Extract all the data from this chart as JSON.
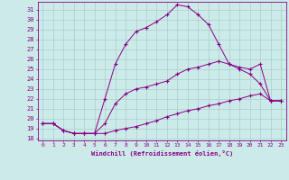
{
  "xlabel": "Windchill (Refroidissement éolien,°C)",
  "xlim": [
    -0.5,
    23.5
  ],
  "ylim": [
    17.8,
    31.8
  ],
  "yticks": [
    18,
    19,
    20,
    21,
    22,
    23,
    24,
    25,
    26,
    27,
    28,
    29,
    30,
    31
  ],
  "xticks": [
    0,
    1,
    2,
    3,
    4,
    5,
    6,
    7,
    8,
    9,
    10,
    11,
    12,
    13,
    14,
    15,
    16,
    17,
    18,
    19,
    20,
    21,
    22,
    23
  ],
  "bg_color": "#cceae8",
  "grid_color": "#aacfcc",
  "line_color": "#880088",
  "line1_x": [
    0,
    1,
    2,
    3,
    4,
    5,
    6,
    7,
    8,
    9,
    10,
    11,
    12,
    13,
    14,
    15,
    16,
    17,
    18,
    19,
    20,
    21,
    22,
    23
  ],
  "line1_y": [
    19.5,
    19.5,
    18.8,
    18.5,
    18.5,
    18.5,
    18.5,
    18.8,
    19.0,
    19.2,
    19.5,
    19.8,
    20.2,
    20.5,
    20.8,
    21.0,
    21.3,
    21.5,
    21.8,
    22.0,
    22.3,
    22.5,
    21.8,
    21.8
  ],
  "line2_x": [
    0,
    1,
    2,
    3,
    4,
    5,
    6,
    7,
    8,
    9,
    10,
    11,
    12,
    13,
    14,
    15,
    16,
    17,
    18,
    19,
    20,
    21,
    22,
    23
  ],
  "line2_y": [
    19.5,
    19.5,
    18.8,
    18.5,
    18.5,
    18.5,
    19.5,
    21.5,
    22.5,
    23.0,
    23.2,
    23.5,
    23.8,
    24.5,
    25.0,
    25.2,
    25.5,
    25.8,
    25.5,
    25.2,
    25.0,
    25.5,
    21.8,
    21.8
  ],
  "line3_x": [
    0,
    1,
    2,
    3,
    4,
    5,
    6,
    7,
    8,
    9,
    10,
    11,
    12,
    13,
    14,
    15,
    16,
    17,
    18,
    19,
    20,
    21,
    22,
    23
  ],
  "line3_y": [
    19.5,
    19.5,
    18.8,
    18.5,
    18.5,
    18.5,
    22.0,
    25.5,
    27.5,
    28.8,
    29.2,
    29.8,
    30.5,
    31.5,
    31.3,
    30.5,
    29.5,
    27.5,
    25.5,
    25.0,
    24.5,
    23.5,
    21.8,
    21.8
  ]
}
